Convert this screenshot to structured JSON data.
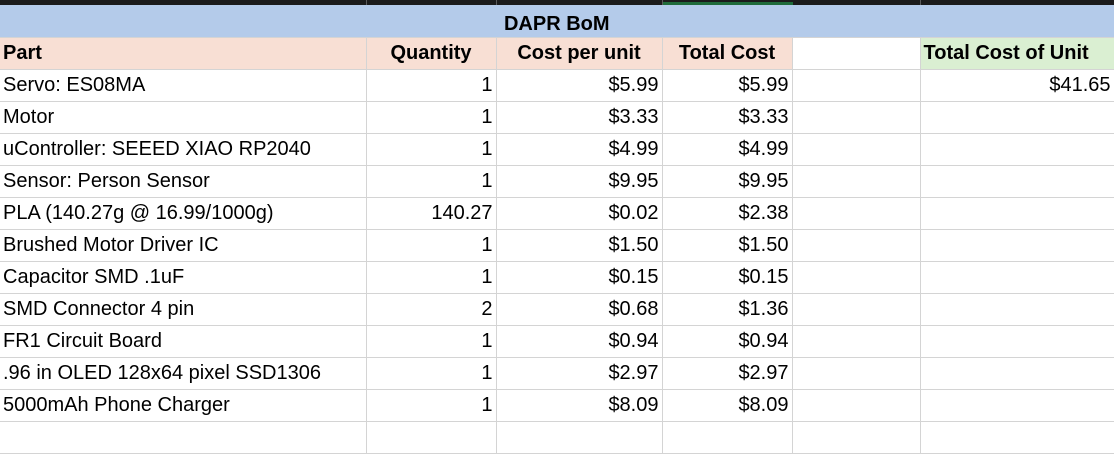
{
  "sheet": {
    "title": "DAPR BoM",
    "headers": {
      "part": "Part",
      "quantity": "Quantity",
      "cost_per_unit": "Cost per unit",
      "total_cost": "Total Cost",
      "total_cost_of_unit": "Total Cost of Unit"
    },
    "total_cost_of_unit_value": "$41.65",
    "rows": [
      {
        "part": "Servo: ES08MA",
        "quantity": "1",
        "cost_per_unit": "$5.99",
        "total_cost": "$5.99"
      },
      {
        "part": "Motor",
        "quantity": "1",
        "cost_per_unit": "$3.33",
        "total_cost": "$3.33"
      },
      {
        "part": "uController: SEEED XIAO RP2040",
        "quantity": "1",
        "cost_per_unit": "$4.99",
        "total_cost": "$4.99"
      },
      {
        "part": "Sensor: Person Sensor",
        "quantity": "1",
        "cost_per_unit": "$9.95",
        "total_cost": "$9.95"
      },
      {
        "part": "PLA (140.27g @ 16.99/1000g)",
        "quantity": "140.27",
        "cost_per_unit": "$0.02",
        "total_cost": "$2.38"
      },
      {
        "part": "Brushed Motor Driver IC",
        "quantity": "1",
        "cost_per_unit": "$1.50",
        "total_cost": "$1.50"
      },
      {
        "part": "Capacitor SMD .1uF",
        "quantity": "1",
        "cost_per_unit": "$0.15",
        "total_cost": "$0.15"
      },
      {
        "part": "SMD Connector 4 pin",
        "quantity": "2",
        "cost_per_unit": "$0.68",
        "total_cost": "$1.36"
      },
      {
        "part": "FR1 Circuit Board",
        "quantity": "1",
        "cost_per_unit": "$0.94",
        "total_cost": "$0.94"
      },
      {
        "part": ".96 in OLED 128x64 pixel SSD1306",
        "quantity": "1",
        "cost_per_unit": "$2.97",
        "total_cost": "$2.97"
      },
      {
        "part": "5000mAh Phone Charger",
        "quantity": "1",
        "cost_per_unit": "$8.09",
        "total_cost": "$8.09"
      }
    ]
  },
  "colors": {
    "title_fill": "#b4cbea",
    "header_fill": "#f8dfd4",
    "total_header_fill": "#daefd2",
    "selection_accent": "#1f6b3b"
  }
}
